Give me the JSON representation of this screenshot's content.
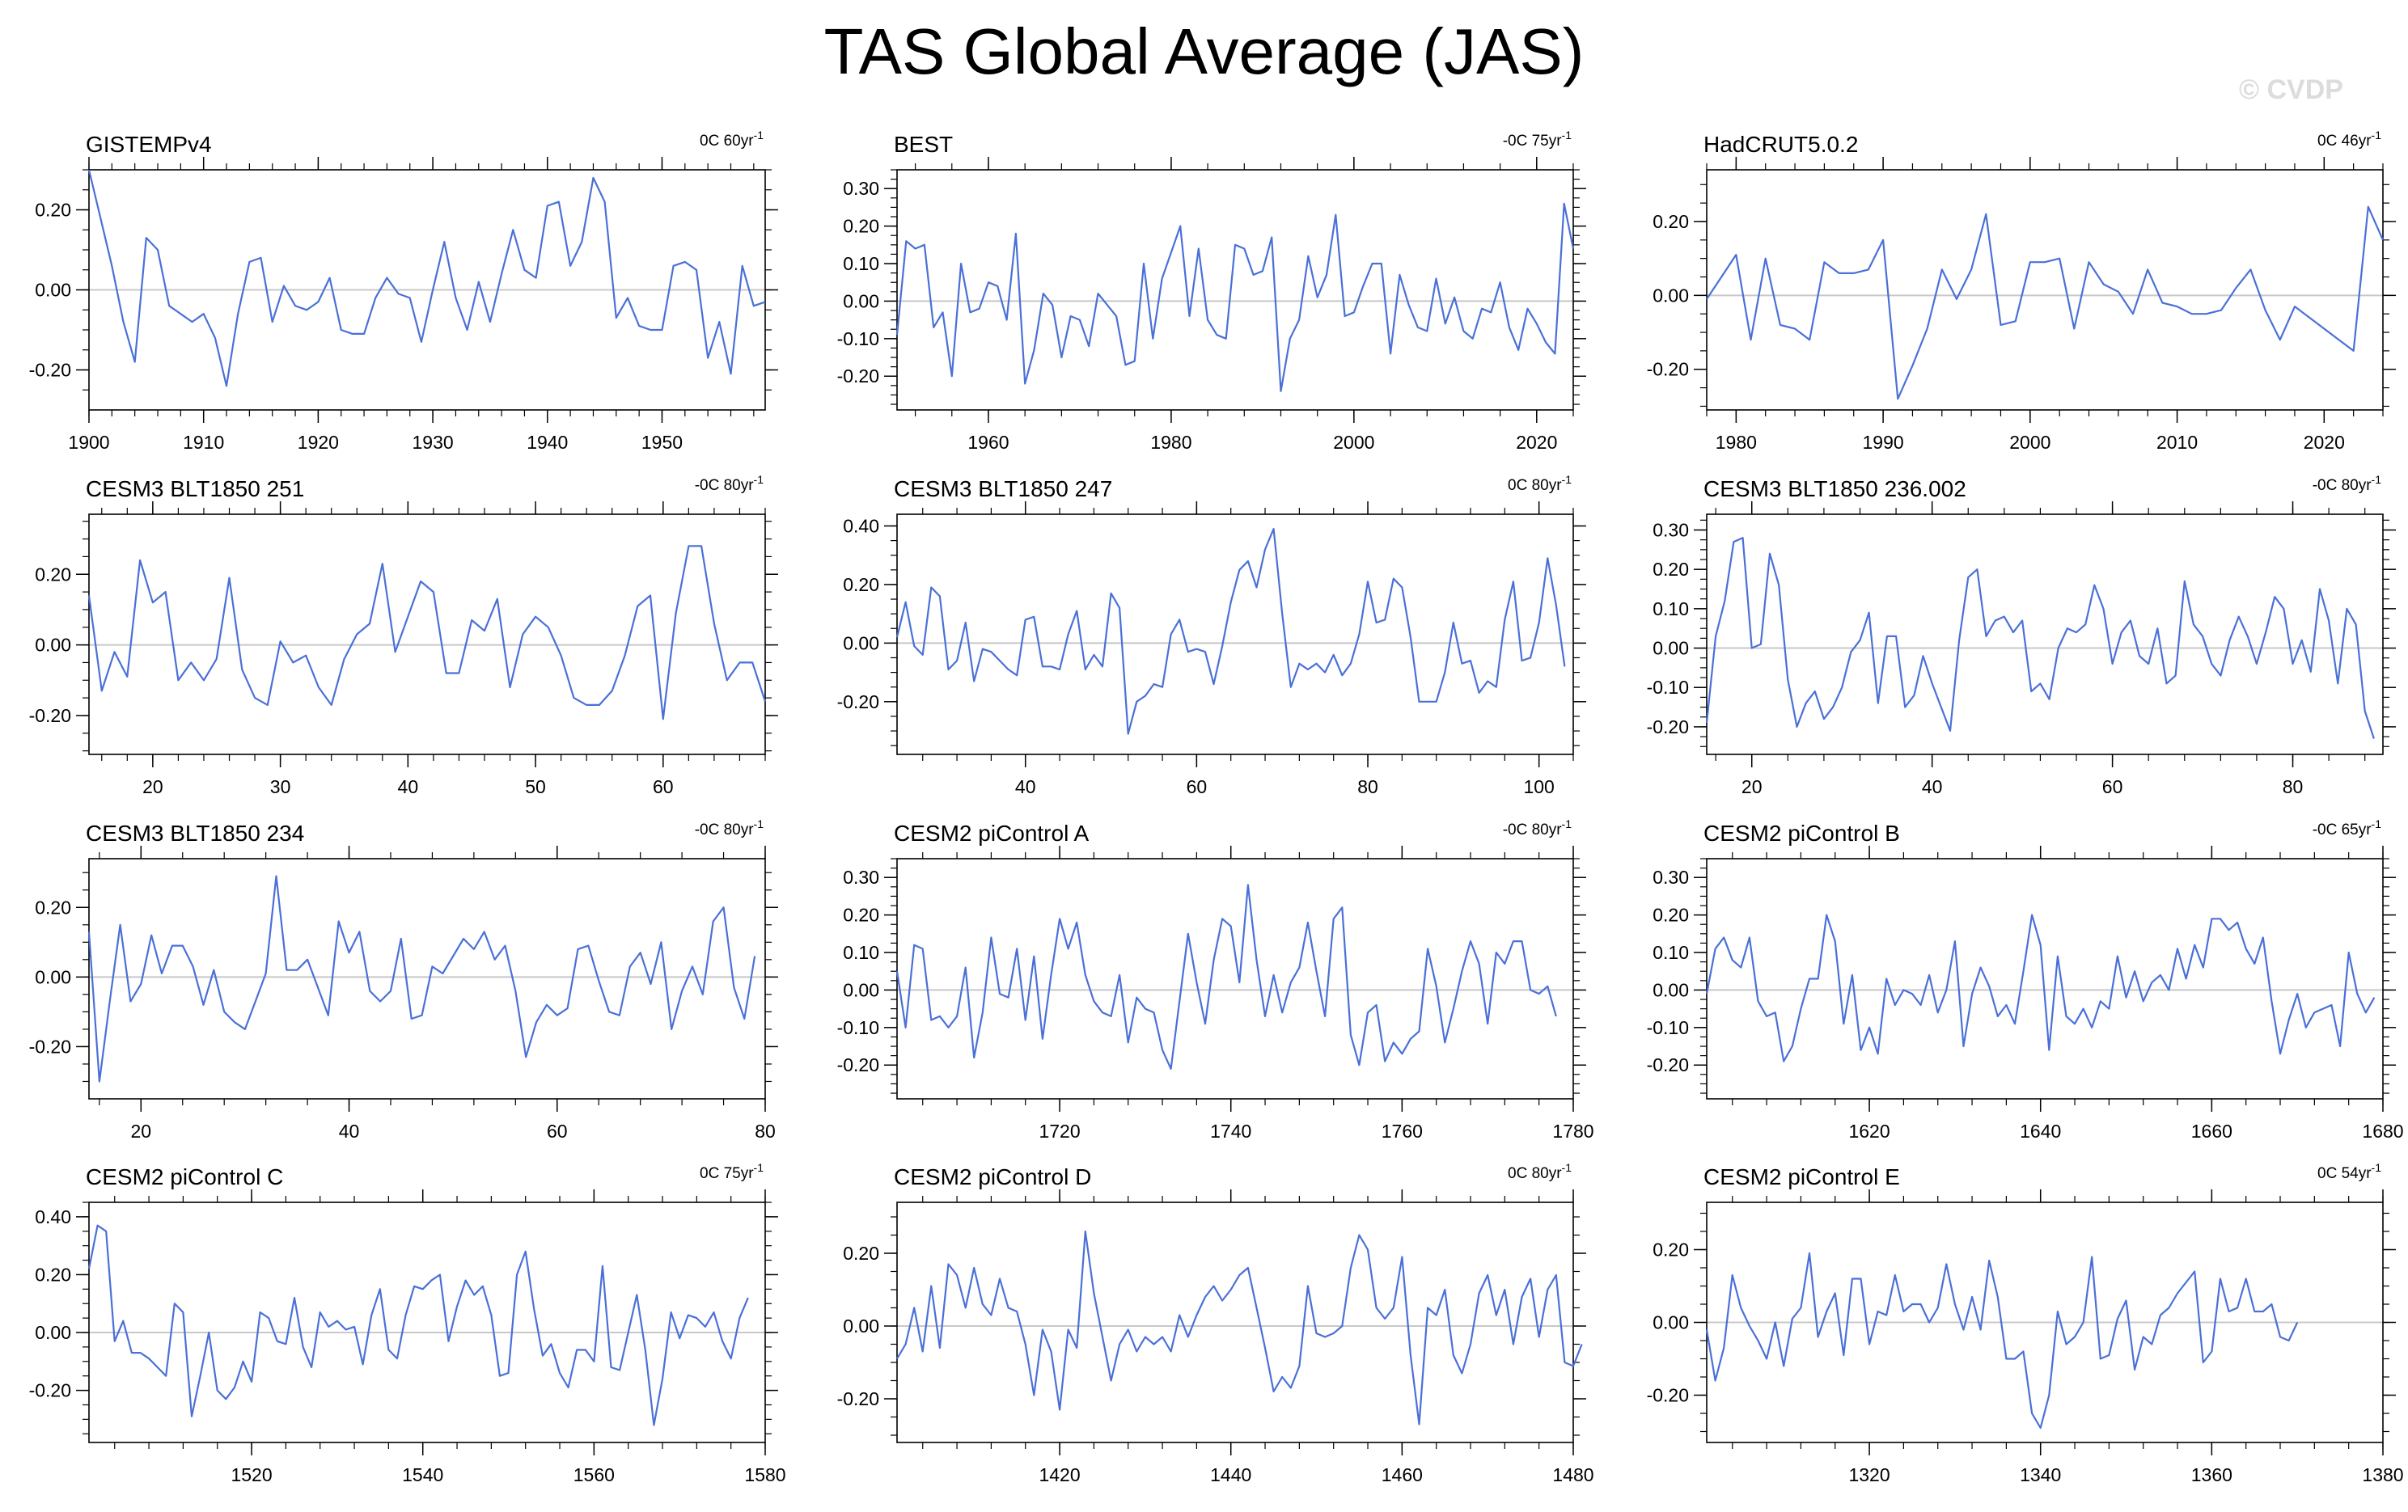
{
  "title": "TAS Global Average (JAS)",
  "watermark": "© CVDP",
  "colors": {
    "series": "#4a70d8",
    "secondary": "#8c8c8c",
    "zero_line": "#c8c8c8",
    "axis": "#000000"
  },
  "chart_data": [
    {
      "type": "line",
      "title": "GISTEMPv4",
      "trend_label": "0C 60yr",
      "trend_exp": "-1",
      "xlim": [
        1900,
        1959
      ],
      "ylim": [
        -0.3,
        0.3
      ],
      "xticks": [
        1900,
        1910,
        1920,
        1930,
        1940,
        1950
      ],
      "yticks": [
        -0.2,
        0.0,
        0.2
      ],
      "ytick_labels": [
        "-0.20",
        "0.00",
        "0.20"
      ],
      "x_start": 1900,
      "values": [
        0.3,
        0.18,
        0.06,
        -0.08,
        -0.18,
        0.13,
        0.1,
        -0.04,
        -0.06,
        -0.08,
        -0.06,
        -0.12,
        -0.24,
        -0.06,
        0.07,
        0.08,
        -0.08,
        0.01,
        -0.04,
        -0.05,
        -0.03,
        0.03,
        -0.1,
        -0.11,
        -0.11,
        -0.02,
        0.03,
        -0.01,
        -0.02,
        -0.13,
        0.0,
        0.12,
        -0.02,
        -0.1,
        0.02,
        -0.08,
        0.04,
        0.15,
        0.05,
        0.03,
        0.21,
        0.22,
        0.06,
        0.12,
        0.28,
        0.22,
        -0.07,
        -0.02,
        -0.09,
        -0.1,
        -0.1,
        0.06,
        0.07,
        0.05,
        -0.17,
        -0.08,
        -0.21,
        0.06,
        -0.04,
        -0.03
      ]
    },
    {
      "type": "line",
      "title": "BEST",
      "trend_label": "-0C 75yr",
      "trend_exp": "-1",
      "xlim": [
        1950,
        2024
      ],
      "ylim": [
        -0.29,
        0.35
      ],
      "xticks": [
        1960,
        1980,
        2000,
        2020
      ],
      "yticks": [
        -0.2,
        -0.1,
        0.0,
        0.1,
        0.2,
        0.3
      ],
      "ytick_labels": [
        "-0.20",
        "-0.10",
        "0.00",
        "0.10",
        "0.20",
        "0.30"
      ],
      "x_start": 1950,
      "values": [
        -0.09,
        0.16,
        0.14,
        0.15,
        -0.07,
        -0.03,
        -0.2,
        0.1,
        -0.03,
        -0.02,
        0.05,
        0.04,
        -0.05,
        0.18,
        -0.22,
        -0.13,
        0.02,
        -0.01,
        -0.15,
        -0.04,
        -0.05,
        -0.12,
        0.02,
        -0.01,
        -0.04,
        -0.17,
        -0.16,
        0.1,
        -0.1,
        0.06,
        0.13,
        0.2,
        -0.04,
        0.14,
        -0.05,
        -0.09,
        -0.1,
        0.15,
        0.14,
        0.07,
        0.08,
        0.17,
        -0.24,
        -0.1,
        -0.05,
        0.12,
        0.01,
        0.07,
        0.23,
        -0.04,
        -0.03,
        0.04,
        0.1,
        0.1,
        -0.14,
        0.07,
        -0.01,
        -0.07,
        -0.08,
        0.06,
        -0.06,
        0.01,
        -0.08,
        -0.1,
        -0.02,
        -0.03,
        0.05,
        -0.07,
        -0.13,
        -0.02,
        -0.06,
        -0.11,
        -0.14,
        0.26,
        0.14
      ]
    },
    {
      "type": "line",
      "title": "HadCRUT5.0.2",
      "trend_label": "0C 46yr",
      "trend_exp": "-1",
      "xlim": [
        1978,
        2024
      ],
      "ylim": [
        -0.31,
        0.34
      ],
      "xticks": [
        1980,
        1990,
        2000,
        2010,
        2020
      ],
      "yticks": [
        -0.2,
        0.0,
        0.2
      ],
      "ytick_labels": [
        "-0.20",
        "0.00",
        "0.20"
      ],
      "x_start": 1978,
      "values": [
        -0.01,
        0.05,
        0.11,
        -0.12,
        0.1,
        -0.08,
        -0.09,
        -0.12,
        0.09,
        0.06,
        0.06,
        0.07,
        0.15,
        -0.28,
        -0.19,
        -0.09,
        0.07,
        -0.01,
        0.07,
        0.22,
        -0.08,
        -0.07,
        0.09,
        0.09,
        0.1,
        -0.09,
        0.09,
        0.03,
        0.01,
        -0.05,
        0.07,
        -0.02,
        -0.03,
        -0.05,
        -0.05,
        -0.04,
        0.02,
        0.07,
        -0.04,
        -0.12,
        -0.03,
        -0.06,
        -0.09,
        -0.12,
        -0.15,
        0.24,
        0.15
      ]
    },
    {
      "type": "line",
      "title": "CESM3 BLT1850 251",
      "trend_label": "-0C 80yr",
      "trend_exp": "-1",
      "xlim": [
        15,
        68
      ],
      "ylim": [
        -0.31,
        0.37
      ],
      "xticks": [
        20,
        30,
        40,
        50,
        60
      ],
      "yticks": [
        -0.2,
        0.0,
        0.2
      ],
      "ytick_labels": [
        "-0.20",
        "0.00",
        "0.20"
      ],
      "x_start": 15,
      "values": [
        0.14,
        -0.13,
        -0.02,
        -0.09,
        0.24,
        0.12,
        0.15,
        -0.1,
        -0.05,
        -0.1,
        -0.04,
        0.19,
        -0.07,
        -0.15,
        -0.17,
        0.01,
        -0.05,
        -0.03,
        -0.12,
        -0.17,
        -0.04,
        0.03,
        0.06,
        0.23,
        -0.02,
        0.08,
        0.18,
        0.15,
        -0.08,
        -0.08,
        0.07,
        0.04,
        0.13,
        -0.12,
        0.03,
        0.08,
        0.05,
        -0.03,
        -0.15,
        -0.17,
        -0.17,
        -0.13,
        -0.03,
        0.11,
        0.14,
        -0.21,
        0.09,
        0.28,
        0.28,
        0.06,
        -0.1,
        -0.05,
        -0.05,
        -0.16
      ]
    },
    {
      "type": "line",
      "title": "CESM3 BLT1850 247",
      "trend_label": "0C 80yr",
      "trend_exp": "-1",
      "xlim": [
        25,
        104
      ],
      "ylim": [
        -0.38,
        0.44
      ],
      "xticks": [
        40,
        60,
        80,
        100
      ],
      "yticks": [
        -0.2,
        0.0,
        0.2,
        0.4
      ],
      "ytick_labels": [
        "-0.20",
        "0.00",
        "0.20",
        "0.40"
      ],
      "x_start": 25,
      "values": [
        0.02,
        0.14,
        -0.01,
        -0.04,
        0.19,
        0.16,
        -0.09,
        -0.06,
        0.07,
        -0.13,
        -0.02,
        -0.03,
        -0.06,
        -0.09,
        -0.11,
        0.08,
        0.09,
        -0.08,
        -0.08,
        -0.09,
        0.03,
        0.11,
        -0.09,
        -0.04,
        -0.08,
        0.17,
        0.12,
        -0.31,
        -0.2,
        -0.18,
        -0.14,
        -0.15,
        0.03,
        0.08,
        -0.03,
        -0.02,
        -0.03,
        -0.14,
        -0.01,
        0.14,
        0.25,
        0.28,
        0.19,
        0.32,
        0.39,
        0.1,
        -0.15,
        -0.07,
        -0.09,
        -0.07,
        -0.1,
        -0.04,
        -0.11,
        -0.07,
        0.03,
        0.21,
        0.07,
        0.08,
        0.22,
        0.19,
        0.02,
        -0.2,
        -0.2,
        -0.2,
        -0.1,
        0.07,
        -0.07,
        -0.06,
        -0.17,
        -0.13,
        -0.15,
        0.08,
        0.21,
        -0.06,
        -0.05,
        0.07,
        0.29,
        0.13,
        -0.08
      ]
    },
    {
      "type": "line",
      "title": "CESM3 BLT1850 236.002",
      "trend_label": "-0C 80yr",
      "trend_exp": "-1",
      "xlim": [
        15,
        90
      ],
      "ylim": [
        -0.27,
        0.34
      ],
      "xticks": [
        20,
        40,
        60,
        80
      ],
      "yticks": [
        -0.2,
        -0.1,
        0.0,
        0.1,
        0.2,
        0.3
      ],
      "ytick_labels": [
        "-0.20",
        "-0.10",
        "0.00",
        "0.10",
        "0.20",
        "0.30"
      ],
      "x_start": 15,
      "values": [
        -0.19,
        0.03,
        0.12,
        0.27,
        0.28,
        0.0,
        0.01,
        0.24,
        0.16,
        -0.08,
        -0.2,
        -0.14,
        -0.11,
        -0.18,
        -0.15,
        -0.1,
        -0.01,
        0.02,
        0.09,
        -0.14,
        0.03,
        0.03,
        -0.15,
        -0.12,
        -0.02,
        -0.09,
        -0.15,
        -0.21,
        0.02,
        0.18,
        0.2,
        0.03,
        0.07,
        0.08,
        0.04,
        0.07,
        -0.11,
        -0.09,
        -0.13,
        0.0,
        0.05,
        0.04,
        0.06,
        0.16,
        0.1,
        -0.04,
        0.04,
        0.07,
        -0.02,
        -0.04,
        0.05,
        -0.09,
        -0.07,
        0.17,
        0.06,
        0.03,
        -0.04,
        -0.07,
        0.02,
        0.08,
        0.03,
        -0.04,
        0.04,
        0.13,
        0.1,
        -0.04,
        0.02,
        -0.06,
        0.15,
        0.07,
        -0.09,
        0.1,
        0.06,
        -0.16,
        -0.23
      ]
    },
    {
      "type": "line",
      "title": "CESM3 BLT1850 234",
      "trend_label": "-0C 80yr",
      "trend_exp": "-1",
      "xlim": [
        15,
        80
      ],
      "ylim": [
        -0.35,
        0.34
      ],
      "xticks": [
        20,
        40,
        60,
        80
      ],
      "yticks": [
        -0.2,
        0.0,
        0.2
      ],
      "ytick_labels": [
        "-0.20",
        "0.00",
        "0.20"
      ],
      "x_start": 15,
      "values": [
        0.13,
        -0.3,
        -0.07,
        0.15,
        -0.07,
        -0.02,
        0.12,
        0.01,
        0.09,
        0.09,
        0.03,
        -0.08,
        0.02,
        -0.1,
        -0.13,
        -0.15,
        -0.07,
        0.01,
        0.29,
        0.02,
        0.02,
        0.05,
        -0.03,
        -0.11,
        0.16,
        0.07,
        0.13,
        -0.04,
        -0.07,
        -0.04,
        0.11,
        -0.12,
        -0.11,
        0.03,
        0.01,
        0.06,
        0.11,
        0.08,
        0.13,
        0.05,
        0.09,
        -0.04,
        -0.23,
        -0.13,
        -0.08,
        -0.11,
        -0.09,
        0.08,
        0.09,
        -0.01,
        -0.1,
        -0.11,
        0.03,
        0.07,
        -0.02,
        0.1,
        -0.15,
        -0.04,
        0.03,
        -0.05,
        0.16,
        0.2,
        -0.03,
        -0.12,
        0.06
      ]
    },
    {
      "type": "line",
      "title": "CESM2 piControl A",
      "trend_label": "-0C 80yr",
      "trend_exp": "-1",
      "xlim": [
        1701,
        1780
      ],
      "ylim": [
        -0.29,
        0.35
      ],
      "xticks": [
        1720,
        1740,
        1760,
        1780
      ],
      "yticks": [
        -0.2,
        -0.1,
        0.0,
        0.1,
        0.2,
        0.3
      ],
      "ytick_labels": [
        "-0.20",
        "-0.10",
        "0.00",
        "0.10",
        "0.20",
        "0.30"
      ],
      "x_start": 1701,
      "values": [
        0.05,
        -0.1,
        0.12,
        0.11,
        -0.08,
        -0.07,
        -0.1,
        -0.07,
        0.06,
        -0.18,
        -0.06,
        0.14,
        -0.01,
        -0.02,
        0.11,
        -0.08,
        0.09,
        -0.13,
        0.04,
        0.19,
        0.11,
        0.18,
        0.04,
        -0.03,
        -0.06,
        -0.07,
        0.04,
        -0.14,
        -0.02,
        -0.05,
        -0.06,
        -0.16,
        -0.21,
        -0.03,
        0.15,
        0.02,
        -0.09,
        0.08,
        0.19,
        0.17,
        0.02,
        0.28,
        0.08,
        -0.07,
        0.04,
        -0.06,
        0.02,
        0.06,
        0.18,
        0.05,
        -0.07,
        0.19,
        0.22,
        -0.12,
        -0.2,
        -0.06,
        -0.04,
        -0.19,
        -0.14,
        -0.17,
        -0.13,
        -0.11,
        0.11,
        0.01,
        -0.14,
        -0.05,
        0.05,
        0.13,
        0.07,
        -0.09,
        0.1,
        0.07,
        0.13,
        0.13,
        0.0,
        -0.01,
        0.01,
        -0.07
      ]
    },
    {
      "type": "line",
      "title": "CESM2 piControl B",
      "trend_label": "-0C 65yr",
      "trend_exp": "-1",
      "xlim": [
        1601,
        1680
      ],
      "ylim": [
        -0.29,
        0.35
      ],
      "xticks": [
        1620,
        1640,
        1660,
        1680
      ],
      "yticks": [
        -0.2,
        -0.1,
        0.0,
        0.1,
        0.2,
        0.3
      ],
      "ytick_labels": [
        "-0.20",
        "-0.10",
        "0.00",
        "0.10",
        "0.20",
        "0.30"
      ],
      "x_start": 1601,
      "values": [
        -0.01,
        0.11,
        0.14,
        0.08,
        0.06,
        0.14,
        -0.03,
        -0.07,
        -0.06,
        -0.19,
        -0.15,
        -0.05,
        0.03,
        0.03,
        0.2,
        0.13,
        -0.09,
        0.04,
        -0.16,
        -0.1,
        -0.17,
        0.03,
        -0.04,
        0.0,
        -0.01,
        -0.04,
        0.04,
        -0.06,
        0.0,
        0.13,
        -0.15,
        -0.01,
        0.06,
        0.01,
        -0.07,
        -0.04,
        -0.09,
        0.05,
        0.2,
        0.12,
        -0.16,
        0.09,
        -0.07,
        -0.09,
        -0.05,
        -0.1,
        -0.03,
        -0.05,
        0.09,
        -0.02,
        0.05,
        -0.03,
        0.02,
        0.04,
        0.0,
        0.11,
        0.03,
        0.12,
        0.06,
        0.19,
        0.19,
        0.16,
        0.18,
        0.11,
        0.07,
        0.14,
        -0.03,
        -0.17,
        -0.08,
        -0.01,
        -0.1,
        -0.06,
        -0.05,
        -0.04,
        -0.15,
        0.1,
        -0.01,
        -0.06,
        -0.02
      ]
    },
    {
      "type": "line",
      "title": "CESM2 piControl C",
      "trend_label": "0C 75yr",
      "trend_exp": "-1",
      "xlim": [
        1501,
        1580
      ],
      "ylim": [
        -0.38,
        0.45
      ],
      "xticks": [
        1520,
        1540,
        1560,
        1580
      ],
      "yticks": [
        -0.2,
        0.0,
        0.2,
        0.4
      ],
      "ytick_labels": [
        "-0.20",
        "0.00",
        "0.20",
        "0.40"
      ],
      "x_start": 1501,
      "values": [
        0.22,
        0.37,
        0.35,
        -0.03,
        0.04,
        -0.07,
        -0.07,
        -0.09,
        -0.12,
        -0.15,
        0.1,
        0.07,
        -0.29,
        -0.15,
        0.0,
        -0.2,
        -0.23,
        -0.19,
        -0.1,
        -0.17,
        0.07,
        0.05,
        -0.03,
        -0.04,
        0.12,
        -0.05,
        -0.12,
        0.07,
        0.02,
        0.04,
        0.01,
        0.02,
        -0.11,
        0.06,
        0.15,
        -0.06,
        -0.09,
        0.06,
        0.16,
        0.15,
        0.18,
        0.2,
        -0.03,
        0.09,
        0.18,
        0.13,
        0.16,
        0.06,
        -0.15,
        -0.14,
        0.2,
        0.28,
        0.08,
        -0.08,
        -0.04,
        -0.14,
        -0.19,
        -0.06,
        -0.06,
        -0.1,
        0.23,
        -0.12,
        -0.13,
        0.0,
        0.13,
        -0.06,
        -0.32,
        -0.16,
        0.07,
        -0.02,
        0.06,
        0.05,
        0.02,
        0.07,
        -0.03,
        -0.09,
        0.05,
        0.12
      ]
    },
    {
      "type": "line",
      "title": "CESM2 piControl D",
      "trend_label": "0C 80yr",
      "trend_exp": "-1",
      "xlim": [
        1401,
        1480
      ],
      "ylim": [
        -0.32,
        0.34
      ],
      "xticks": [
        1420,
        1440,
        1460,
        1480
      ],
      "yticks": [
        -0.2,
        0.0,
        0.2
      ],
      "ytick_labels": [
        "-0.20",
        "0.00",
        "0.20"
      ],
      "x_start": 1401,
      "values": [
        -0.09,
        -0.05,
        0.05,
        -0.07,
        0.11,
        -0.06,
        0.17,
        0.14,
        0.05,
        0.16,
        0.06,
        0.03,
        0.13,
        0.05,
        0.04,
        -0.05,
        -0.19,
        -0.01,
        -0.07,
        -0.23,
        -0.01,
        -0.06,
        0.26,
        0.09,
        -0.03,
        -0.15,
        -0.05,
        -0.01,
        -0.07,
        -0.03,
        -0.05,
        -0.03,
        -0.07,
        0.03,
        -0.03,
        0.03,
        0.08,
        0.11,
        0.07,
        0.1,
        0.14,
        0.16,
        0.05,
        -0.06,
        -0.18,
        -0.14,
        -0.17,
        -0.11,
        0.11,
        -0.02,
        -0.03,
        -0.02,
        0.0,
        0.16,
        0.25,
        0.21,
        0.05,
        0.02,
        0.05,
        0.19,
        -0.08,
        -0.27,
        0.05,
        0.03,
        0.1,
        -0.08,
        -0.13,
        -0.05,
        0.09,
        0.14,
        0.03,
        0.1,
        -0.05,
        0.08,
        0.13,
        -0.03,
        0.1,
        0.14,
        -0.1,
        -0.11,
        -0.05
      ]
    },
    {
      "type": "line",
      "title": "CESM2 piControl E",
      "trend_label": "0C 54yr",
      "trend_exp": "-1",
      "xlim": [
        1301,
        1380
      ],
      "ylim": [
        -0.33,
        0.33
      ],
      "xticks": [
        1320,
        1340,
        1360,
        1380
      ],
      "yticks": [
        -0.2,
        0.0,
        0.2
      ],
      "ytick_labels": [
        "-0.20",
        "0.00",
        "0.20"
      ],
      "x_start": 1301,
      "values": [
        -0.02,
        -0.16,
        -0.07,
        0.13,
        0.04,
        -0.01,
        -0.05,
        -0.1,
        0.0,
        -0.12,
        0.01,
        0.04,
        0.19,
        -0.04,
        0.03,
        0.08,
        -0.09,
        0.12,
        0.12,
        -0.06,
        0.03,
        0.02,
        0.13,
        0.03,
        0.05,
        0.05,
        0.0,
        0.04,
        0.16,
        0.05,
        -0.02,
        0.07,
        -0.02,
        0.17,
        0.07,
        -0.1,
        -0.1,
        -0.08,
        -0.25,
        -0.29,
        -0.2,
        0.03,
        -0.06,
        -0.04,
        0.0,
        0.18,
        -0.1,
        -0.09,
        0.01,
        0.06,
        -0.13,
        -0.04,
        -0.06,
        0.02,
        0.04,
        0.08,
        0.11,
        0.14,
        -0.11,
        -0.08,
        0.12,
        0.03,
        0.04,
        0.12,
        0.03,
        0.03,
        0.05,
        -0.04,
        -0.05,
        0.0
      ]
    }
  ]
}
